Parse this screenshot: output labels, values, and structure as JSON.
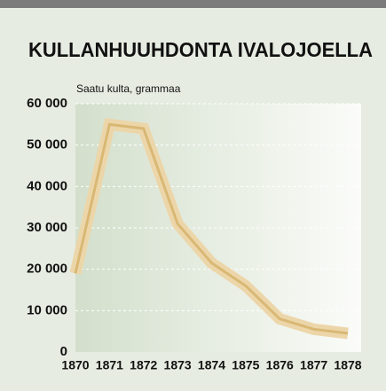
{
  "chart_data": {
    "type": "line",
    "title": "KULLANHUUHDONTA IVALOJOELLA",
    "y_axis_label": "Saatu kulta, grammaa",
    "categories": [
      "1870",
      "1871",
      "1872",
      "1873",
      "1874",
      "1875",
      "1876",
      "1877",
      "1878"
    ],
    "series": [
      {
        "color": "#d9b874",
        "values": [
          19000,
          55000,
          54000,
          31000,
          21500,
          16000,
          8000,
          5500,
          4500
        ]
      }
    ],
    "ylim": [
      0,
      60000
    ],
    "yticks": [
      0,
      {
        "value": 10000,
        "label": "10 000"
      },
      {
        "value": 20000,
        "label": "20 000"
      },
      {
        "value": 30000,
        "label": "30 000"
      },
      {
        "value": 40000,
        "label": "40 000"
      },
      {
        "value": 50000,
        "label": "50 000"
      },
      {
        "value": 60000,
        "label": "60 000"
      }
    ],
    "grid": true
  }
}
